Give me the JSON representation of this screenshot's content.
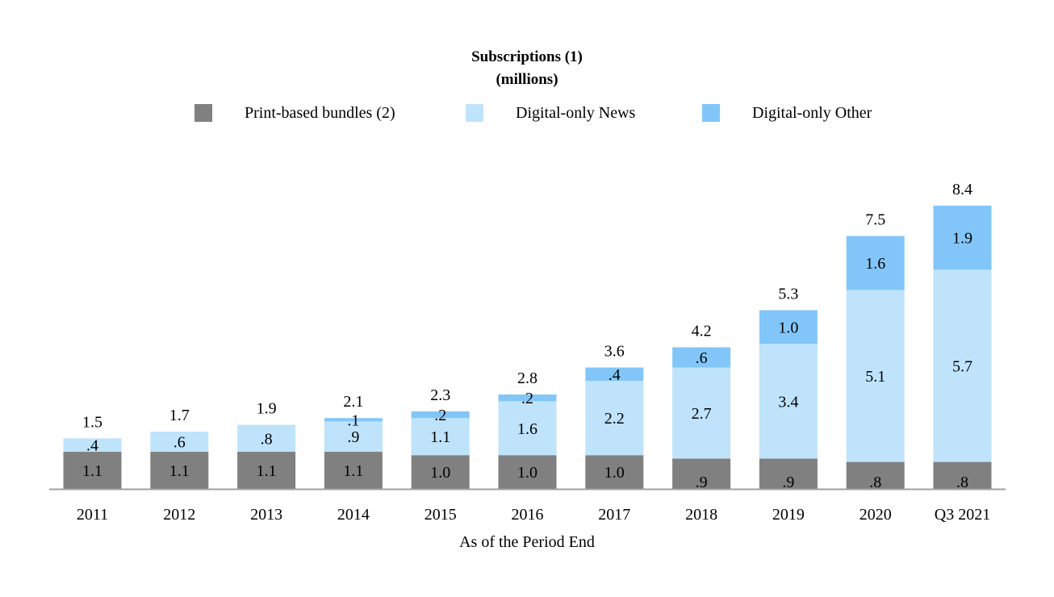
{
  "chart_data": {
    "type": "bar",
    "stacked": true,
    "title": "Subscriptions (1)",
    "subtitle": "(millions)",
    "xlabel": "As of the Period End",
    "categories": [
      "2011",
      "2012",
      "2013",
      "2014",
      "2015",
      "2016",
      "2017",
      "2018",
      "2019",
      "2020",
      "Q3 2021"
    ],
    "series": [
      {
        "name": "Print-based bundles (2)",
        "color": "#808080",
        "values": [
          1.1,
          1.1,
          1.1,
          1.1,
          1.0,
          1.0,
          1.0,
          0.9,
          0.9,
          0.8,
          0.8
        ],
        "labels": [
          "1.1",
          "1.1",
          "1.1",
          "1.1",
          "1.0",
          "1.0",
          "1.0",
          ".9",
          ".9",
          ".8",
          ".8"
        ]
      },
      {
        "name": "Digital-only News",
        "color": "#bfe3fb",
        "values": [
          0.4,
          0.6,
          0.8,
          0.9,
          1.1,
          1.6,
          2.2,
          2.7,
          3.4,
          5.1,
          5.7
        ],
        "labels": [
          ".4",
          ".6",
          ".8",
          ".9",
          "1.1",
          "1.6",
          "2.2",
          "2.7",
          "3.4",
          "5.1",
          "5.7"
        ]
      },
      {
        "name": "Digital-only Other",
        "color": "#82c6f9",
        "values": [
          0.0,
          0.0,
          0.0,
          0.1,
          0.2,
          0.2,
          0.4,
          0.6,
          1.0,
          1.6,
          1.9
        ],
        "labels": [
          "",
          "",
          "",
          ".1",
          ".2",
          ".2",
          ".4",
          ".6",
          "1.0",
          "1.6",
          "1.9"
        ]
      }
    ],
    "totals": [
      "1.5",
      "1.7",
      "1.9",
      "2.1",
      "2.3",
      "2.8",
      "3.6",
      "4.2",
      "5.3",
      "7.5",
      "8.4"
    ],
    "legend_position": "top",
    "grid": false,
    "ylim": [
      0,
      8.4
    ]
  }
}
